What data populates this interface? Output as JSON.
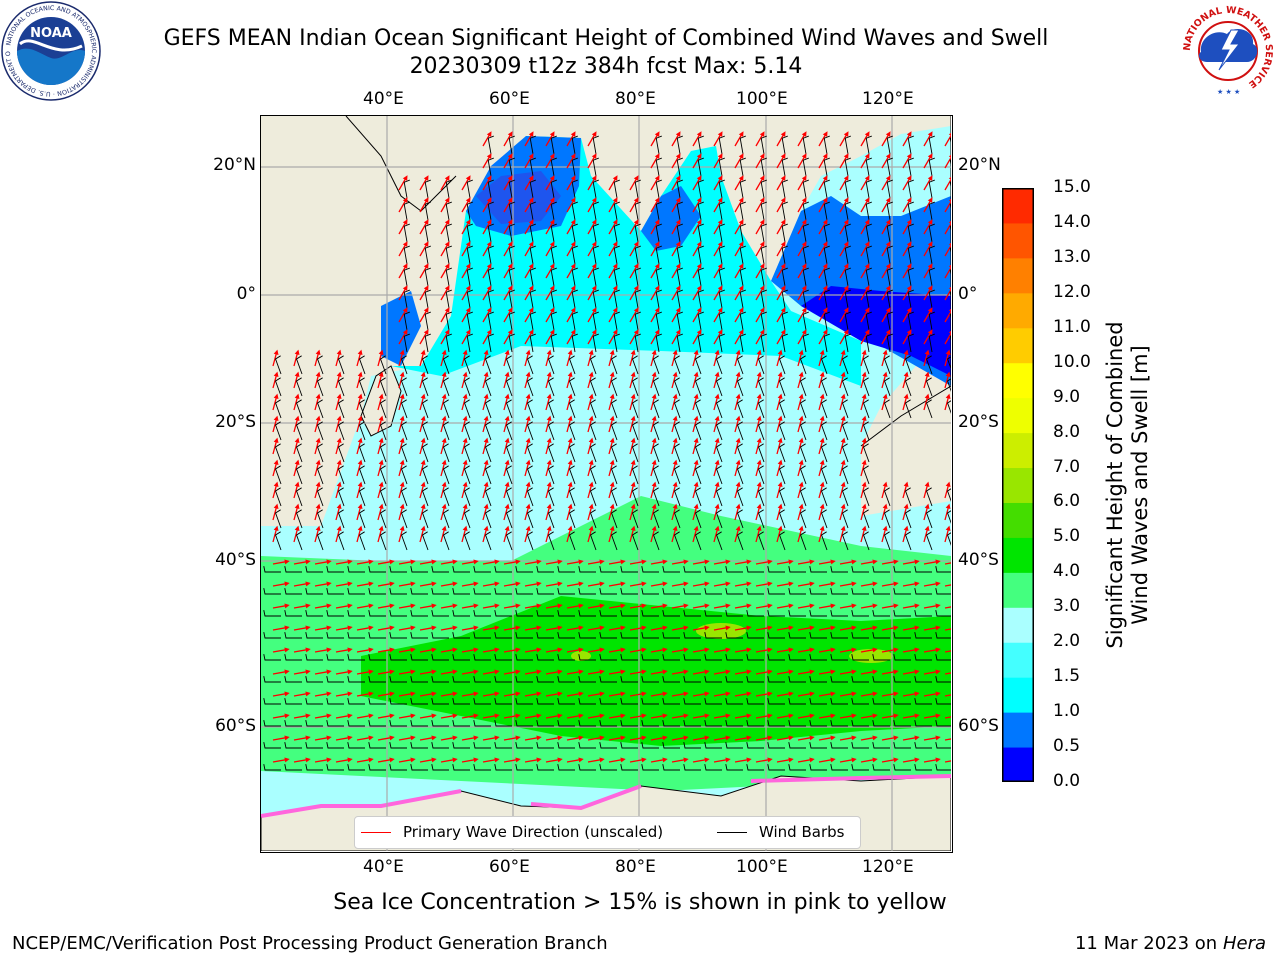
{
  "title_line1": "GEFS MEAN Indian Ocean Significant Height of Combined Wind Waves and Swell",
  "title_line2": "20230309 t12z 384h fcst   Max: 5.14",
  "logos": {
    "left": {
      "name": "noaa-logo",
      "text": "NOAA",
      "ring_text": "NATIONAL OCEANIC AND ATMOSPHERIC ADMINISTRATION · U.S. DEPARTMENT OF COMMERCE"
    },
    "right": {
      "name": "nws-logo",
      "ring_text": "NATIONAL WEATHER SERVICE"
    }
  },
  "lon_ticks": [
    "40°E",
    "60°E",
    "80°E",
    "100°E",
    "120°E"
  ],
  "lat_ticks": [
    "20°N",
    "0°",
    "20°S",
    "40°S",
    "60°S"
  ],
  "colorbar": {
    "title_line1": "Significant Height of Combined",
    "title_line2": "Wind Waves and Swell [m]",
    "levels": [
      "0.0",
      "0.5",
      "1.0",
      "1.5",
      "2.0",
      "3.0",
      "4.0",
      "5.0",
      "6.0",
      "7.0",
      "8.0",
      "9.0",
      "10.0",
      "11.0",
      "12.0",
      "13.0",
      "14.0",
      "15.0"
    ],
    "colors": [
      "#0000ff",
      "#0077ff",
      "#00ffff",
      "#44ffff",
      "#aaffff",
      "#44ff7f",
      "#00e500",
      "#44dd00",
      "#99e600",
      "#ccee00",
      "#eeff00",
      "#ffff00",
      "#ffcc00",
      "#ffaa00",
      "#ff8000",
      "#ff5500",
      "#ff2a00"
    ]
  },
  "legend": {
    "wave_label": "Primary Wave Direction (unscaled)",
    "wave_color": "#ff0000",
    "wind_label": "Wind Barbs",
    "wind_color": "#000000"
  },
  "ice_note": "Sea Ice Concentration > 15% is shown in pink to yellow",
  "footer_left": "NCEP/EMC/Verification Post Processing Product Generation Branch",
  "footer_date": "11 Mar 2023 on",
  "footer_host": "Hera",
  "map_colors": {
    "land": "#eeecdc",
    "grid": "#aaaaaa",
    "ice": "#ff66dd"
  }
}
